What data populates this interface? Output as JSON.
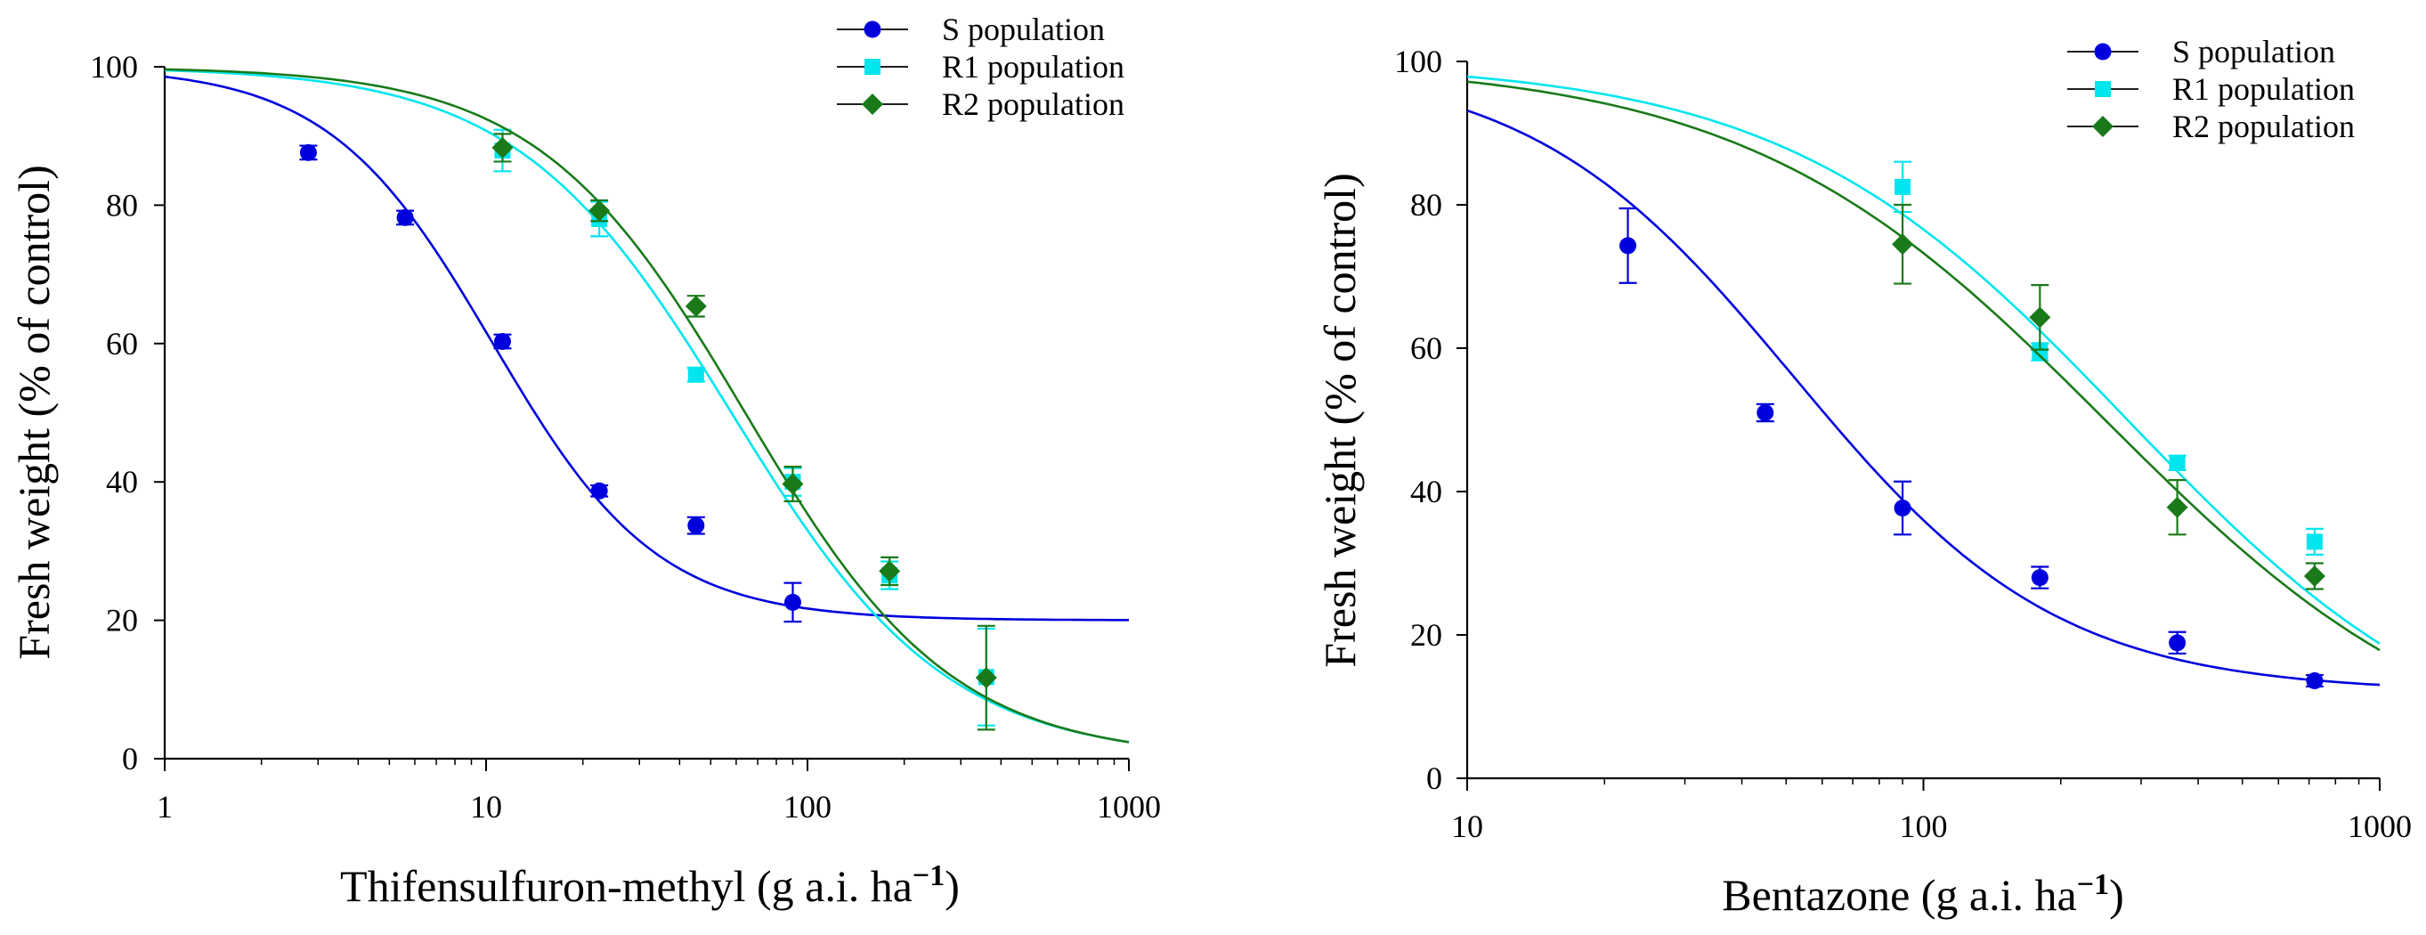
{
  "chart_data": [
    {
      "type": "scatter",
      "xscale": "log",
      "xlabel": "Thifensulfuron-methyl (g a.i. ha",
      "xlabel_sup": "−1",
      "xlabel_close": ")",
      "ylabel": "Fresh weight (% of control)",
      "xlim": [
        1,
        1000
      ],
      "ylim": [
        0,
        100
      ],
      "xticks": [
        1,
        10,
        100,
        1000
      ],
      "xtick_labels": [
        "1",
        "10",
        "100",
        "1000"
      ],
      "yticks": [
        0,
        20,
        40,
        60,
        80,
        100
      ],
      "ytick_labels": [
        "0",
        "20",
        "40",
        "60",
        "80",
        "100"
      ],
      "legend_position": "top-right",
      "series": [
        {
          "name": "S population",
          "color": "#0000dd",
          "marker": "circle",
          "x": [
            2.8,
            5.6,
            11.25,
            22.5,
            45,
            90
          ],
          "y": [
            87.6,
            78.2,
            60.3,
            38.7,
            33.7,
            22.6
          ],
          "err": [
            1.0,
            1.0,
            1.0,
            0.8,
            1.2,
            2.8
          ],
          "fit": {
            "upper": 100,
            "lower": 20,
            "ec50": 10.5,
            "slope": 1.7
          }
        },
        {
          "name": "R1 population",
          "color": "#00e5ee",
          "marker": "square",
          "x": [
            11.25,
            22.5,
            45,
            90,
            180,
            360
          ],
          "y": [
            87.9,
            78.0,
            55.5,
            40.0,
            26.5,
            11.8
          ],
          "err": [
            3.0,
            2.5,
            1.0,
            2.0,
            2.0,
            7.0
          ],
          "fit": {
            "upper": 100,
            "lower": 0,
            "ec50": 58,
            "slope": 1.3
          }
        },
        {
          "name": "R2 population",
          "color": "#1a7a1a",
          "marker": "diamond",
          "x": [
            11.25,
            22.5,
            45,
            90,
            180,
            360
          ],
          "y": [
            88.3,
            79.2,
            65.4,
            39.7,
            27.1,
            11.7
          ],
          "err": [
            2.0,
            1.5,
            1.5,
            2.5,
            2.0,
            7.5
          ],
          "fit": {
            "upper": 100,
            "lower": 0,
            "ec50": 64,
            "slope": 1.35
          }
        }
      ]
    },
    {
      "type": "scatter",
      "xscale": "log",
      "xlabel": "Bentazone (g a.i. ha",
      "xlabel_sup": "−1",
      "xlabel_close": ")",
      "ylabel": "Fresh weight (% of control)",
      "xlim": [
        10,
        1000
      ],
      "ylim": [
        0,
        100
      ],
      "xticks": [
        10,
        100,
        1000
      ],
      "xtick_labels": [
        "10",
        "100",
        "1000"
      ],
      "yticks": [
        0,
        20,
        40,
        60,
        80,
        100
      ],
      "ytick_labels": [
        "0",
        "20",
        "40",
        "60",
        "80",
        "100"
      ],
      "legend_position": "top-right",
      "series": [
        {
          "name": "S population",
          "color": "#0000dd",
          "marker": "circle",
          "x": [
            22.5,
            45,
            90,
            180,
            360,
            720
          ],
          "y": [
            74.3,
            51.0,
            37.7,
            28.0,
            18.9,
            13.6
          ],
          "err": [
            5.2,
            1.2,
            3.7,
            1.5,
            1.5,
            0.8
          ],
          "fit": {
            "upper": 100,
            "lower": 12,
            "ec50": 52,
            "slope": 1.5
          }
        },
        {
          "name": "R1 population",
          "color": "#00e5ee",
          "marker": "square",
          "x": [
            90,
            180,
            360,
            720
          ],
          "y": [
            82.5,
            59.5,
            44.0,
            33.0
          ],
          "err": [
            3.5,
            1.2,
            1.0,
            1.8
          ],
          "fit": {
            "upper": 100,
            "lower": 0,
            "ec50": 280,
            "slope": 1.15
          }
        },
        {
          "name": "R2 population",
          "color": "#1a7a1a",
          "marker": "diamond",
          "x": [
            90,
            180,
            360,
            720
          ],
          "y": [
            74.5,
            64.3,
            37.8,
            28.2
          ],
          "err": [
            5.5,
            4.5,
            3.8,
            1.8
          ],
          "fit": {
            "upper": 100,
            "lower": 0,
            "ec50": 250,
            "slope": 1.1
          }
        }
      ]
    }
  ]
}
